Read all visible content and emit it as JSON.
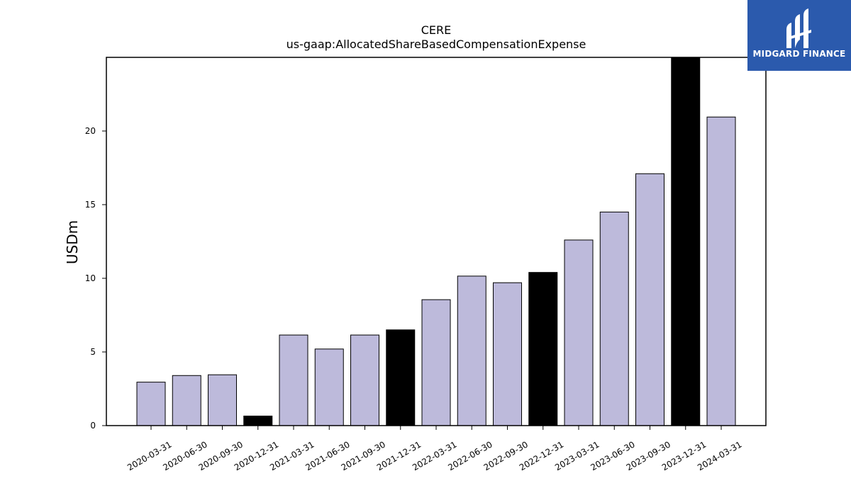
{
  "chart_data": {
    "type": "bar",
    "title": "CERE",
    "subtitle": "us-gaap:AllocatedShareBasedCompensationExpense",
    "xlabel": "",
    "ylabel": "USDm",
    "ylim": [
      0,
      25
    ],
    "yticks": [
      0,
      5,
      10,
      15,
      20
    ],
    "grid": false,
    "categories": [
      "2020-03-31",
      "2020-06-30",
      "2020-09-30",
      "2020-12-31",
      "2021-03-31",
      "2021-06-30",
      "2021-09-30",
      "2021-12-31",
      "2022-03-31",
      "2022-06-30",
      "2022-09-30",
      "2022-12-31",
      "2023-03-31",
      "2023-06-30",
      "2023-09-30",
      "2023-12-31",
      "2024-03-31"
    ],
    "values": [
      2.95,
      3.4,
      3.45,
      0.65,
      6.15,
      5.2,
      6.15,
      6.5,
      8.55,
      10.15,
      9.7,
      10.4,
      12.6,
      14.5,
      17.1,
      25.0,
      20.95
    ],
    "highlighted": [
      "2020-12-31",
      "2021-12-31",
      "2022-12-31",
      "2023-12-31"
    ],
    "colors": {
      "bar": "#bdbadb",
      "highlight": "#000000",
      "edge": "#000000"
    }
  },
  "logo": {
    "text": "MIDGARD FINANCE",
    "background": "#2b5aad"
  }
}
